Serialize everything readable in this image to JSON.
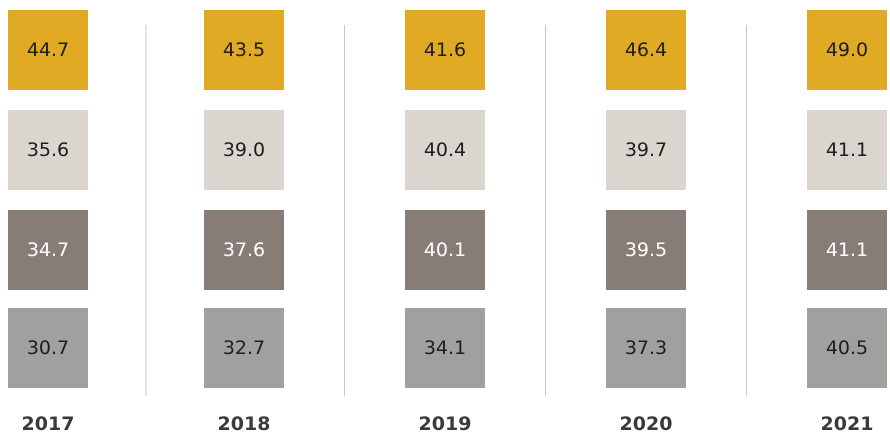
{
  "table": {
    "columns": [
      "2017",
      "2018",
      "2019",
      "2020",
      "2021"
    ],
    "rows": [
      [
        "44.7",
        "43.5",
        "41.6",
        "46.4",
        "49.0"
      ],
      [
        "35.6",
        "39.0",
        "40.4",
        "39.7",
        "41.1"
      ],
      [
        "34.7",
        "37.6",
        "40.1",
        "39.5",
        "41.1"
      ],
      [
        "30.7",
        "32.7",
        "34.1",
        "37.3",
        "40.5"
      ]
    ]
  }
}
